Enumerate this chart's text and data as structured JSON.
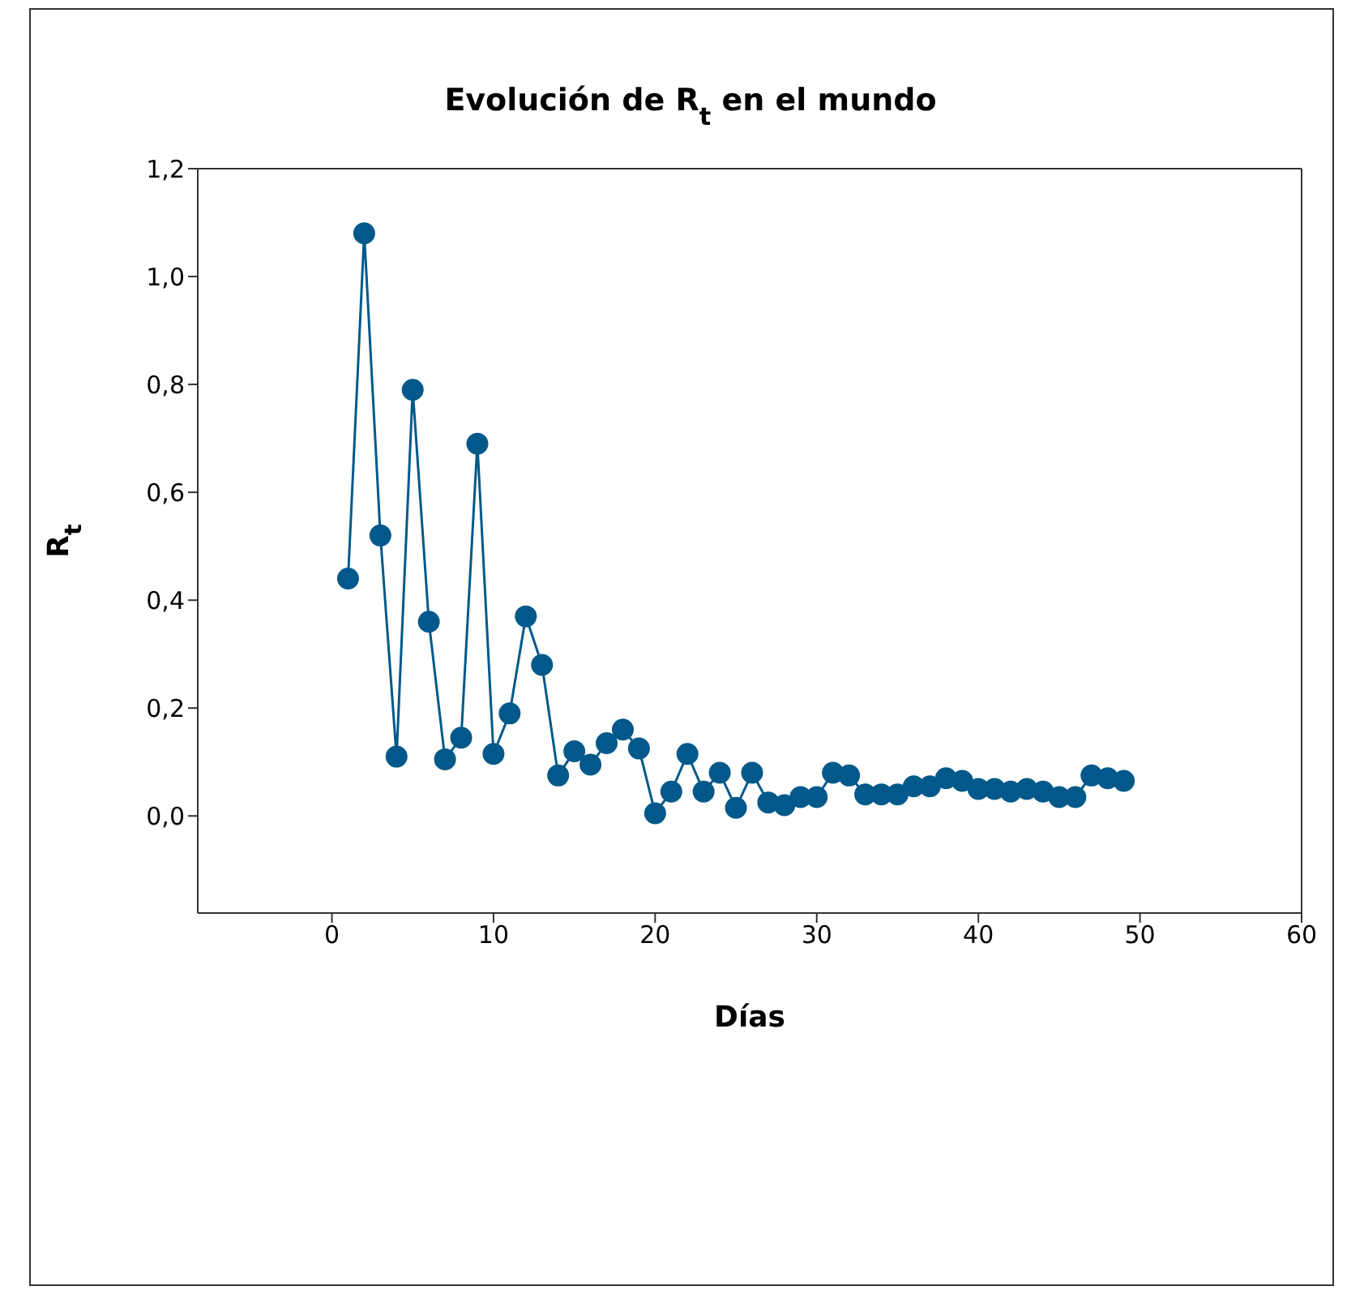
{
  "chart_data": {
    "type": "line",
    "title": "Evolución de R$_{t}$ en el mundo",
    "xlabel": "Días",
    "ylabel": "R$_{t}$",
    "x": [
      1,
      2,
      3,
      4,
      5,
      6,
      7,
      8,
      9,
      10,
      11,
      12,
      13,
      14,
      15,
      16,
      17,
      18,
      19,
      20,
      21,
      22,
      23,
      24,
      25,
      26,
      27,
      28,
      29,
      30,
      31,
      32,
      33,
      34,
      35,
      36,
      37,
      38,
      39,
      40,
      41,
      42,
      43,
      44,
      45,
      46,
      47,
      48,
      49
    ],
    "series": [
      {
        "color": "#00598a",
        "values": [
          0.44,
          1.08,
          0.52,
          0.11,
          0.79,
          0.36,
          0.105,
          0.145,
          0.69,
          0.115,
          0.19,
          0.37,
          0.28,
          0.075,
          0.12,
          0.095,
          0.135,
          0.16,
          0.125,
          0.005,
          0.045,
          0.115,
          0.045,
          0.08,
          0.015,
          0.08,
          0.025,
          0.02,
          0.035,
          0.035,
          0.08,
          0.075,
          0.04,
          0.04,
          0.04,
          0.055,
          0.055,
          0.07,
          0.065,
          0.05,
          0.05,
          0.045,
          0.05,
          0.045,
          0.035,
          0.035,
          0.075,
          0.07,
          0.065
        ]
      }
    ],
    "xlim": [
      -8.3,
      60
    ],
    "xticks": [
      0,
      10,
      20,
      30,
      40,
      50,
      60
    ],
    "ylim": [
      -0.18,
      1.2
    ],
    "yticks": [
      {
        "value": 0,
        "label": "0,0"
      },
      {
        "value": 0.2,
        "label": "0,2"
      },
      {
        "value": 0.4,
        "label": "0,4"
      },
      {
        "value": 0.6,
        "label": "0,6"
      },
      {
        "value": 0.8,
        "label": "0,8"
      },
      {
        "value": 1,
        "label": "1,0"
      },
      {
        "value": 1.2,
        "label": "1,2"
      }
    ],
    "marker": "circle",
    "line_style": "solid",
    "grid": false,
    "legend": false
  }
}
